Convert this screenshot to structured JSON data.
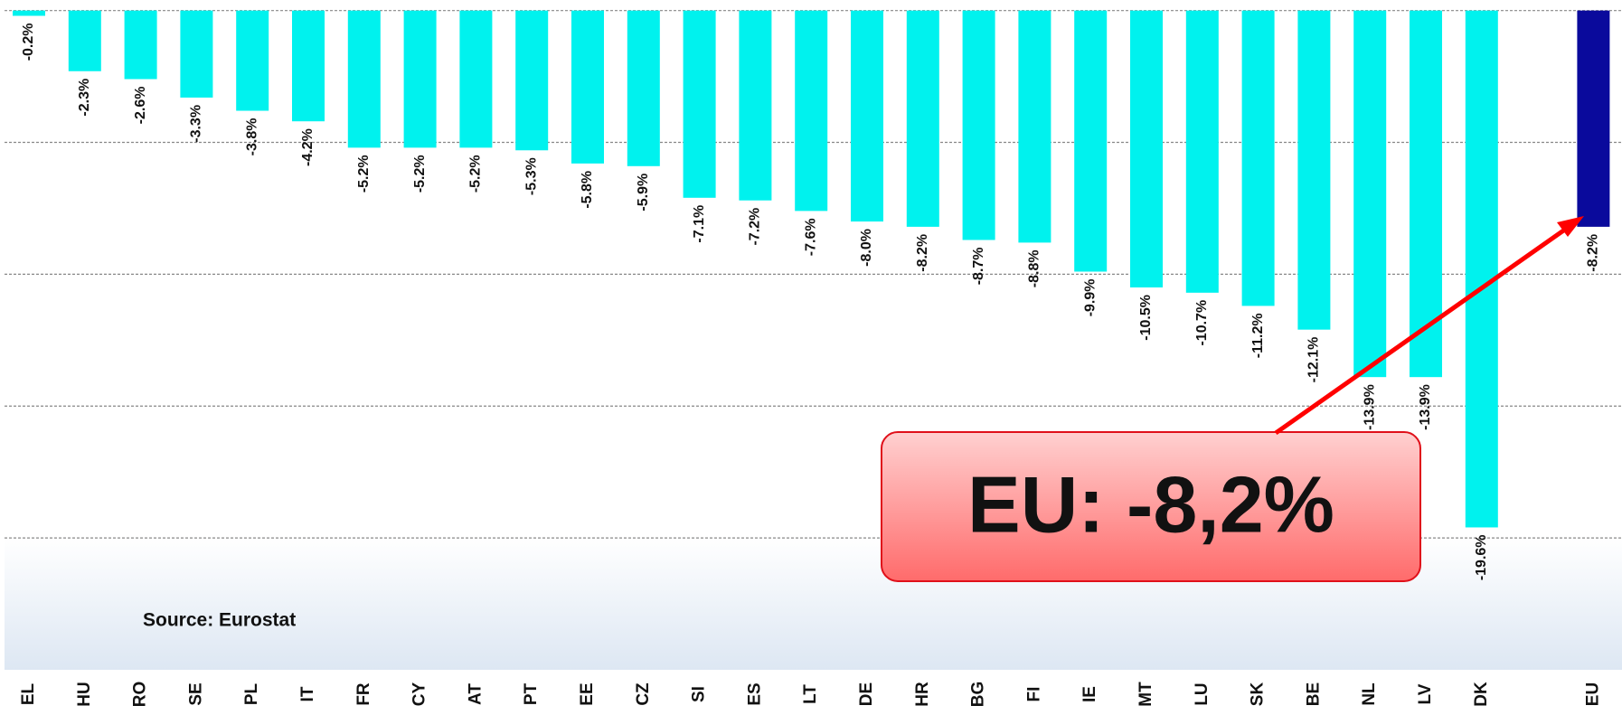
{
  "chart_data": {
    "type": "bar",
    "categories": [
      "EL",
      "HU",
      "RO",
      "SE",
      "PL",
      "IT",
      "FR",
      "CY",
      "AT",
      "PT",
      "EE",
      "CZ",
      "SI",
      "ES",
      "LT",
      "DE",
      "HR",
      "BG",
      "FI",
      "IE",
      "MT",
      "LU",
      "SK",
      "BE",
      "NL",
      "LV",
      "DK",
      null,
      "EU"
    ],
    "values": [
      -0.2,
      -2.3,
      -2.6,
      -3.3,
      -3.8,
      -4.2,
      -5.2,
      -5.2,
      -5.2,
      -5.3,
      -5.8,
      -5.9,
      -7.1,
      -7.2,
      -7.6,
      -8.0,
      -8.2,
      -8.7,
      -8.8,
      -9.9,
      -10.5,
      -10.7,
      -11.2,
      -12.1,
      -13.9,
      -13.9,
      -19.6,
      null,
      -8.2
    ],
    "value_labels": [
      "-0.2%",
      "-2.3%",
      "-2.6%",
      "-3.3%",
      "-3.8%",
      "-4.2%",
      "-5.2%",
      "-5.2%",
      "-5.2%",
      "-5.3%",
      "-5.8%",
      "-5.9%",
      "-7.1%",
      "-7.2%",
      "-7.6%",
      "-8.0%",
      "-8.2%",
      "-8.7%",
      "-8.8%",
      "-9.9%",
      "-10.5%",
      "-10.7%",
      "-11.2%",
      "-12.1%",
      "-13.9%",
      "-13.9%",
      "-19.6%",
      null,
      "-8.2%"
    ],
    "colors": [
      "#00f2ee",
      "#00f2ee",
      "#00f2ee",
      "#00f2ee",
      "#00f2ee",
      "#00f2ee",
      "#00f2ee",
      "#00f2ee",
      "#00f2ee",
      "#00f2ee",
      "#00f2ee",
      "#00f2ee",
      "#00f2ee",
      "#00f2ee",
      "#00f2ee",
      "#00f2ee",
      "#00f2ee",
      "#00f2ee",
      "#00f2ee",
      "#00f2ee",
      "#00f2ee",
      "#00f2ee",
      "#00f2ee",
      "#00f2ee",
      "#00f2ee",
      "#00f2ee",
      "#00f2ee",
      null,
      "#0a0a9c"
    ],
    "ylim": [
      -25,
      0.4
    ],
    "yticks": [
      0,
      -5,
      -10,
      -15,
      -20
    ],
    "grid": true,
    "source": "Source: Eurostat",
    "annotation": "EU: -8,2%"
  }
}
